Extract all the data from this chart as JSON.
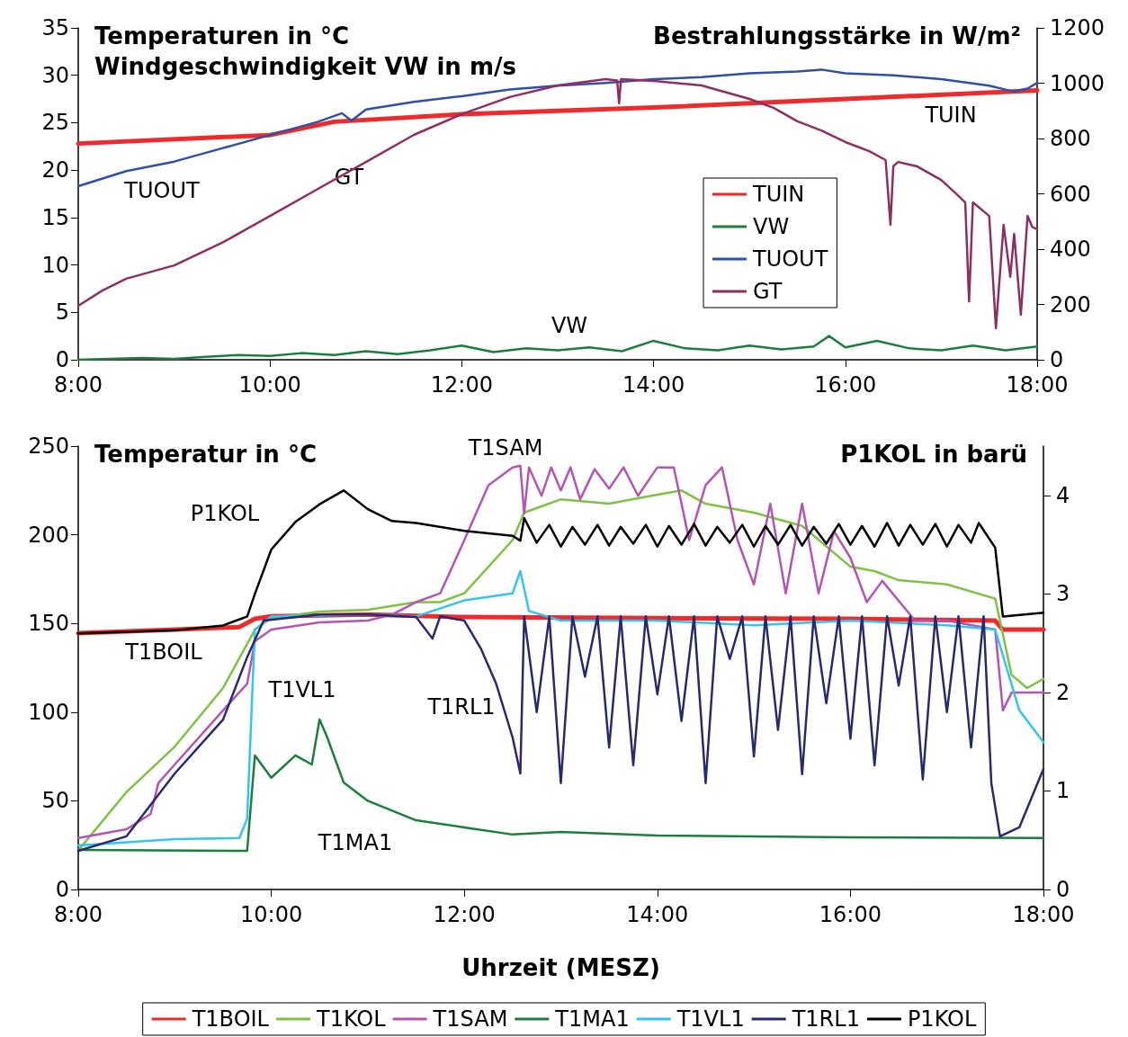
{
  "chart_data": [
    {
      "type": "line",
      "ylabel": "Temperaturen in °C\nWindgeschwindigkeit VW in m/s",
      "y2label": "Bestrahlungsstärke in W/m²",
      "xlim": [
        8,
        18
      ],
      "xticks": [
        {
          "value": 8,
          "label": "8:00"
        },
        {
          "value": 10,
          "label": "10:00"
        },
        {
          "value": 12,
          "label": "12:00"
        },
        {
          "value": 14,
          "label": "14:00"
        },
        {
          "value": 16,
          "label": "16:00"
        },
        {
          "value": 18,
          "label": "18:00"
        }
      ],
      "ylim": [
        0,
        35
      ],
      "yticks": [
        0,
        5,
        10,
        15,
        20,
        25,
        30,
        35
      ],
      "y2lim": [
        0,
        1200
      ],
      "y2ticks": [
        0,
        200,
        400,
        600,
        800,
        1000,
        1200
      ],
      "legend": "right",
      "annotations": [
        "TUOUT",
        "GT",
        "TUIN",
        "VW"
      ],
      "series": [
        {
          "name": "TUIN",
          "color": "#ee2a2a",
          "x": [
            8,
            10,
            10.67,
            12,
            14,
            16,
            18
          ],
          "values": [
            22.8,
            23.7,
            25.1,
            25.9,
            26.6,
            27.5,
            28.4
          ]
        },
        {
          "name": "VW",
          "color": "#1a7f3c",
          "x": [
            8,
            8.33,
            8.67,
            9,
            9.33,
            9.67,
            10,
            10.33,
            10.67,
            11,
            11.33,
            11.67,
            12,
            12.33,
            12.67,
            13,
            13.33,
            13.67,
            14,
            14.33,
            14.67,
            15,
            15.33,
            15.67,
            15.83,
            16,
            16.33,
            16.67,
            17,
            17.33,
            17.67,
            18
          ],
          "values": [
            0,
            0.1,
            0.2,
            0.1,
            0.3,
            0.5,
            0.4,
            0.7,
            0.5,
            0.9,
            0.6,
            1.0,
            1.5,
            0.8,
            1.2,
            1.0,
            1.3,
            0.9,
            2.0,
            1.2,
            1.0,
            1.5,
            1.1,
            1.4,
            2.5,
            1.3,
            2.0,
            1.2,
            1.0,
            1.5,
            1.0,
            1.4
          ]
        },
        {
          "name": "TUOUT",
          "color": "#3050a8",
          "x": [
            8,
            8.5,
            9,
            9.5,
            10,
            10.5,
            10.75,
            10.85,
            11,
            11.5,
            12,
            12.5,
            13,
            13.5,
            14,
            14.5,
            15,
            15.5,
            15.75,
            16,
            16.5,
            17,
            17.5,
            17.75,
            17.9,
            18
          ],
          "values": [
            18.3,
            19.9,
            20.9,
            22.3,
            23.7,
            25.1,
            26.0,
            25.2,
            26.4,
            27.2,
            27.8,
            28.5,
            28.9,
            29.2,
            29.6,
            29.8,
            30.2,
            30.4,
            30.6,
            30.2,
            30.0,
            29.6,
            28.9,
            28.3,
            28.6,
            29.2
          ]
        },
        {
          "name": "GT",
          "color": "#8e2f63",
          "axis": "y2",
          "x": [
            8,
            8.25,
            8.5,
            9,
            9.5,
            10,
            10.5,
            11,
            11.5,
            12,
            12.5,
            13,
            13.5,
            13.62,
            13.64,
            13.66,
            14,
            14.5,
            15,
            15.25,
            15.5,
            15.75,
            16,
            16.25,
            16.42,
            16.47,
            16.5,
            16.55,
            16.75,
            17,
            17.15,
            17.25,
            17.29,
            17.33,
            17.5,
            17.57,
            17.65,
            17.72,
            17.76,
            17.83,
            17.9,
            17.95,
            18
          ],
          "values": [
            195,
            250,
            293,
            341,
            423,
            520,
            618,
            715,
            813,
            888,
            950,
            992,
            1015,
            1010,
            927,
            1015,
            1008,
            992,
            943,
            911,
            862,
            829,
            787,
            754,
            722,
            488,
            700,
            715,
            699,
            650,
            602,
            569,
            211,
            569,
            520,
            114,
            488,
            300,
            455,
            163,
            520,
            480,
            472
          ]
        }
      ]
    },
    {
      "type": "line",
      "ylabel": "Temperatur in °C",
      "y2label": "P1KOL in barü",
      "xlabel": "Uhrzeit (MESZ)",
      "xlim": [
        8,
        18
      ],
      "xticks": [
        {
          "value": 8,
          "label": "8:00"
        },
        {
          "value": 10,
          "label": "10:00"
        },
        {
          "value": 12,
          "label": "12:00"
        },
        {
          "value": 14,
          "label": "14:00"
        },
        {
          "value": 16,
          "label": "16:00"
        },
        {
          "value": 18,
          "label": "18:00"
        }
      ],
      "ylim": [
        0,
        250
      ],
      "yticks": [
        0,
        50,
        100,
        150,
        200,
        250
      ],
      "y2lim": [
        0,
        4.5
      ],
      "y2ticks": [
        0,
        1,
        2,
        3,
        4
      ],
      "legend": "bottom",
      "annotations": [
        "P1KOL",
        "T1BOIL",
        "T1VL1",
        "T1RL1",
        "T1SAM",
        "T1MA1"
      ],
      "series": [
        {
          "name": "T1BOIL",
          "color": "#ee2a2a",
          "x": [
            8,
            9,
            9.67,
            9.83,
            10,
            11,
            12,
            14,
            16,
            17.5,
            17.58,
            18
          ],
          "values": [
            144.5,
            146.5,
            148,
            152.6,
            154,
            155,
            153.6,
            153,
            152.6,
            151.6,
            146.5,
            146.5
          ]
        },
        {
          "name": "T1KOL",
          "color": "#7dc242",
          "x": [
            8,
            8.5,
            9,
            9.5,
            9.83,
            10,
            10.5,
            11,
            11.5,
            11.75,
            12,
            12.25,
            12.5,
            12.62,
            13,
            13.5,
            14,
            14.25,
            14.5,
            15,
            15.5,
            16,
            16.25,
            16.5,
            17,
            17.5,
            17.67,
            17.83,
            18
          ],
          "values": [
            22,
            55,
            80.6,
            113.6,
            146.5,
            153,
            156.7,
            157.7,
            162,
            162,
            167,
            182,
            197,
            212.5,
            220,
            217.5,
            222.6,
            225,
            217.5,
            212.5,
            205,
            182,
            179.5,
            174.4,
            172,
            164,
            121,
            113.6,
            118.7
          ]
        },
        {
          "name": "T1SAM",
          "color": "#b455b4",
          "x": [
            8,
            8.5,
            8.75,
            8.83,
            9,
            9.5,
            9.75,
            9.83,
            10,
            10.5,
            11,
            11.25,
            11.5,
            11.75,
            12,
            12.25,
            12.5,
            12.58,
            12.62,
            12.67,
            12.8,
            12.9,
            13,
            13.1,
            13.2,
            13.35,
            13.5,
            13.65,
            13.8,
            14,
            14.17,
            14.33,
            14.5,
            14.67,
            14.83,
            15,
            15.17,
            15.33,
            15.5,
            15.67,
            15.83,
            16,
            16.17,
            16.33,
            16.67,
            17,
            17.5,
            17.58,
            17.67,
            18
          ],
          "values": [
            29,
            34,
            42.6,
            60,
            70.5,
            101,
            116,
            140,
            146.5,
            150.6,
            151.6,
            155,
            162,
            167,
            197,
            228,
            238,
            239,
            212,
            238,
            222,
            238,
            225,
            238,
            220,
            237,
            226,
            238,
            222,
            238,
            238,
            197,
            228,
            238,
            197,
            172,
            217.5,
            167,
            217.5,
            167,
            202,
            187,
            162,
            174,
            151.6,
            151.6,
            146.5,
            101,
            111,
            111
          ]
        },
        {
          "name": "T1MA1",
          "color": "#1a7f3c",
          "x": [
            8,
            9.75,
            9.83,
            10,
            10.25,
            10.42,
            10.5,
            10.58,
            10.75,
            11,
            11.5,
            12,
            12.5,
            13,
            14,
            16,
            18
          ],
          "values": [
            22.3,
            21.8,
            75.6,
            63,
            75.6,
            70.5,
            95.8,
            85.7,
            60.3,
            50,
            39,
            35,
            31,
            32.5,
            30.4,
            29.4,
            29
          ]
        },
        {
          "name": "T1VL1",
          "color": "#33c4f0",
          "x": [
            8,
            9,
            9.67,
            9.75,
            9.83,
            10,
            11,
            11.5,
            12,
            12.5,
            12.58,
            12.67,
            13,
            14,
            15,
            16,
            17,
            17.5,
            17.75,
            18
          ],
          "values": [
            24.8,
            28.4,
            29,
            40,
            146.5,
            154,
            155,
            154,
            163,
            167,
            179.5,
            157,
            151.6,
            151.6,
            149,
            151.6,
            149,
            146.5,
            101,
            83
          ]
        },
        {
          "name": "T1RL1",
          "color": "#262a6e",
          "x": [
            8,
            8.5,
            9,
            9.5,
            9.75,
            9.92,
            10.5,
            11,
            11.5,
            11.67,
            11.75,
            12,
            12.17,
            12.33,
            12.5,
            12.58,
            12.62,
            12.75,
            12.88,
            13,
            13.12,
            13.25,
            13.38,
            13.5,
            13.62,
            13.75,
            13.88,
            14,
            14.12,
            14.25,
            14.38,
            14.5,
            14.62,
            14.75,
            14.88,
            15,
            15.12,
            15.25,
            15.38,
            15.5,
            15.62,
            15.75,
            15.88,
            16,
            16.12,
            16.25,
            16.38,
            16.5,
            16.62,
            16.75,
            16.88,
            17,
            17.12,
            17.25,
            17.38,
            17.46,
            17.55,
            17.75,
            18
          ],
          "values": [
            21.8,
            30,
            65.4,
            95.8,
            131,
            151.6,
            155,
            155,
            153.6,
            141.5,
            154,
            151.6,
            136,
            116,
            85.7,
            65.4,
            154,
            100,
            154,
            60,
            154,
            120,
            154,
            80,
            154,
            70,
            154,
            110,
            154,
            95,
            154,
            60,
            154,
            130,
            154,
            75,
            154,
            90,
            154,
            65,
            154,
            105,
            154,
            85,
            154,
            70,
            154,
            115,
            154,
            62,
            154,
            100,
            154,
            80,
            154,
            60,
            30,
            35,
            68
          ]
        },
        {
          "name": "P1KOL",
          "color": "#000000",
          "axis": "y2",
          "x": [
            8,
            9,
            9.5,
            9.75,
            9.83,
            10,
            10.25,
            10.5,
            10.75,
            11,
            11.25,
            11.5,
            12,
            12.5,
            12.58,
            12.62,
            12.75,
            12.88,
            13,
            13.12,
            13.25,
            13.38,
            13.5,
            13.62,
            13.75,
            13.88,
            14,
            14.12,
            14.25,
            14.38,
            14.5,
            14.62,
            14.75,
            14.88,
            15,
            15.12,
            15.25,
            15.38,
            15.5,
            15.62,
            15.75,
            15.88,
            16,
            16.12,
            16.25,
            16.38,
            16.5,
            16.62,
            16.75,
            16.88,
            17,
            17.12,
            17.25,
            17.33,
            17.5,
            17.58,
            18
          ],
          "values": [
            2.6,
            2.63,
            2.68,
            2.77,
            3.0,
            3.45,
            3.73,
            3.91,
            4.05,
            3.86,
            3.74,
            3.72,
            3.64,
            3.59,
            3.54,
            3.77,
            3.52,
            3.7,
            3.48,
            3.68,
            3.5,
            3.7,
            3.49,
            3.68,
            3.51,
            3.7,
            3.48,
            3.69,
            3.5,
            3.71,
            3.49,
            3.68,
            3.52,
            3.7,
            3.48,
            3.69,
            3.5,
            3.7,
            3.49,
            3.68,
            3.51,
            3.71,
            3.5,
            3.69,
            3.48,
            3.72,
            3.49,
            3.7,
            3.5,
            3.71,
            3.48,
            3.7,
            3.52,
            3.72,
            3.47,
            2.77,
            2.81
          ]
        }
      ]
    }
  ]
}
